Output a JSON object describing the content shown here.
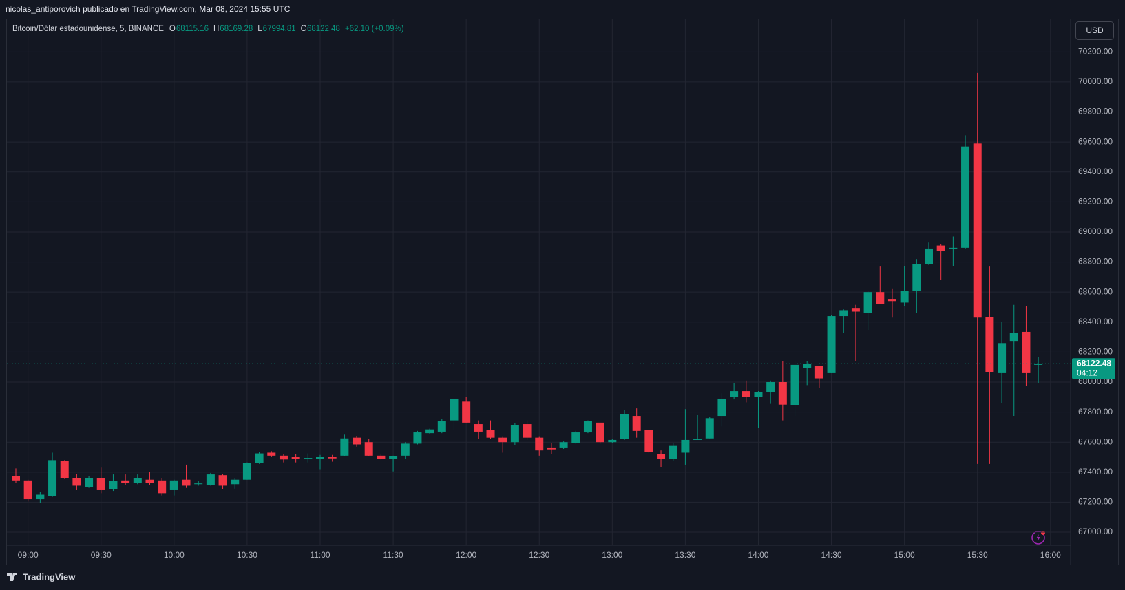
{
  "header": "nicolas_antiporovich publicado en TradingView.com, Mar 08, 2024 15:55 UTC",
  "footer": "TradingView",
  "chart_data": {
    "type": "candlestick",
    "title": "Bitcoin/Dólar estadounidense, 5, BINANCE",
    "legend_labels": [
      "O",
      "H",
      "L",
      "C"
    ],
    "change": "+62.10 (+0.09%)",
    "currency": "USD",
    "countdown": "04:12",
    "up_color": "#089981",
    "down_color": "#f23645",
    "grid": true,
    "categories": [
      null,
      "09:00",
      null,
      null,
      null,
      null,
      null,
      "09:30",
      null,
      null,
      null,
      null,
      null,
      "10:00",
      null,
      null,
      null,
      null,
      null,
      "10:30",
      null,
      null,
      null,
      null,
      null,
      "11:00",
      null,
      null,
      null,
      null,
      null,
      "11:30",
      null,
      null,
      null,
      null,
      null,
      "12:00",
      null,
      null,
      null,
      null,
      null,
      "12:30",
      null,
      null,
      null,
      null,
      null,
      "13:00",
      null,
      null,
      null,
      null,
      null,
      "13:30",
      null,
      null,
      null,
      null,
      null,
      "14:00",
      null,
      null,
      null,
      null,
      null,
      "14:30",
      null,
      null,
      null,
      null,
      null,
      "15:00",
      null,
      null,
      null,
      null,
      null,
      "15:30",
      null,
      null,
      null,
      null,
      null,
      "16:00"
    ],
    "open": [
      67375,
      67345,
      67220,
      67240,
      67475,
      67360,
      67300,
      67360,
      67285,
      67345,
      67330,
      67350,
      67345,
      67280,
      67350,
      67320,
      67315,
      67380,
      67320,
      67350,
      67460,
      67530,
      67510,
      67500,
      67488,
      67490,
      67500,
      67510,
      67630,
      67600,
      67510,
      67490,
      67510,
      67590,
      67660,
      67670,
      67745,
      67870,
      67720,
      67680,
      67630,
      67600,
      67720,
      67630,
      67560,
      67560,
      67595,
      67665,
      67730,
      67600,
      67620,
      67775,
      67680,
      67520,
      67490,
      67530,
      67615,
      67625,
      67775,
      67900,
      67940,
      67900,
      67935,
      68000,
      67845,
      68095,
      68110,
      68060,
      68440,
      68490,
      68460,
      68600,
      68550,
      68530,
      68610,
      68785,
      68910,
      68890,
      68895,
      69590,
      68435,
      68060,
      68270,
      68335,
      68115.16,
      null
    ],
    "high": [
      67425,
      67350,
      67270,
      67530,
      67480,
      67390,
      67375,
      67430,
      67385,
      67385,
      67385,
      67400,
      67360,
      67350,
      67450,
      67340,
      67395,
      67390,
      67360,
      67465,
      67535,
      67540,
      67520,
      67520,
      67525,
      67515,
      67515,
      67650,
      67640,
      67620,
      67520,
      67510,
      67600,
      67675,
      67690,
      67755,
      67890,
      67900,
      67745,
      67745,
      67635,
      67725,
      67745,
      67635,
      67595,
      67605,
      67675,
      67745,
      67730,
      67620,
      67815,
      67825,
      67680,
      67545,
      67595,
      67820,
      67780,
      67770,
      67925,
      67995,
      68010,
      67940,
      68010,
      68140,
      68140,
      68140,
      68110,
      68445,
      68485,
      68515,
      68610,
      68770,
      68620,
      68775,
      68820,
      68930,
      68920,
      68970,
      69645,
      70060,
      68770,
      68400,
      68515,
      68505,
      68169.28,
      null
    ],
    "low": [
      67330,
      67205,
      67195,
      67235,
      67355,
      67280,
      67295,
      67260,
      67275,
      67315,
      67320,
      67315,
      67245,
      67245,
      67295,
      67310,
      67310,
      67285,
      67290,
      67350,
      67455,
      67500,
      67465,
      67465,
      67465,
      67420,
      67470,
      67505,
      67570,
      67505,
      67485,
      67405,
      67490,
      67585,
      67655,
      67660,
      67680,
      67730,
      67620,
      67620,
      67530,
      67580,
      67615,
      67510,
      67520,
      67555,
      67590,
      67660,
      67590,
      67595,
      67615,
      67630,
      67530,
      67435,
      67475,
      67450,
      67615,
      67625,
      67705,
      67885,
      67865,
      67695,
      67855,
      67745,
      67775,
      67980,
      67960,
      68060,
      68330,
      68140,
      68345,
      68520,
      68430,
      68505,
      68460,
      68780,
      68680,
      68775,
      68890,
      67455,
      67455,
      67860,
      67775,
      67975,
      67994.81,
      null
    ],
    "close": [
      67345,
      67220,
      67250,
      67480,
      67360,
      67310,
      67360,
      67280,
      67340,
      67330,
      67360,
      67330,
      67260,
      67345,
      67310,
      67325,
      67385,
      67310,
      67350,
      67460,
      67525,
      67510,
      67485,
      67490,
      67495,
      67500,
      67492,
      67625,
      67585,
      67510,
      67490,
      67505,
      67590,
      67665,
      67685,
      67740,
      67890,
      67730,
      67670,
      67630,
      67600,
      67715,
      67630,
      67545,
      67552,
      67600,
      67665,
      67740,
      67600,
      67615,
      67785,
      67675,
      67535,
      67490,
      67575,
      67615,
      67620,
      67760,
      67890,
      67940,
      67900,
      67935,
      68000,
      67850,
      68115,
      68120,
      68025,
      68440,
      68475,
      68470,
      68600,
      68520,
      68540,
      68610,
      68785,
      68890,
      68875,
      68895,
      69570,
      68430,
      68065,
      68260,
      68330,
      68060,
      68122.48,
      null
    ],
    "ylim": [
      66913,
      70417
    ],
    "yticks": [
      {
        "value": 67000,
        "label": "67000.00"
      },
      {
        "value": 67200,
        "label": "67200.00"
      },
      {
        "value": 67400,
        "label": "67400.00"
      },
      {
        "value": 67600,
        "label": "67600.00"
      },
      {
        "value": 67800,
        "label": "67800.00"
      },
      {
        "value": 68000,
        "label": "68000.00"
      },
      {
        "value": 68200,
        "label": "68200.00"
      },
      {
        "value": 68400,
        "label": "68400.00"
      },
      {
        "value": 68600,
        "label": "68600.00"
      },
      {
        "value": 68800,
        "label": "68800.00"
      },
      {
        "value": 69000,
        "label": "69000.00"
      },
      {
        "value": 69200,
        "label": "69200.00"
      },
      {
        "value": 69400,
        "label": "69400.00"
      },
      {
        "value": 69600,
        "label": "69600.00"
      },
      {
        "value": 69800,
        "label": "69800.00"
      },
      {
        "value": 70000,
        "label": "70000.00"
      },
      {
        "value": 70200,
        "label": "70200.00"
      }
    ]
  }
}
